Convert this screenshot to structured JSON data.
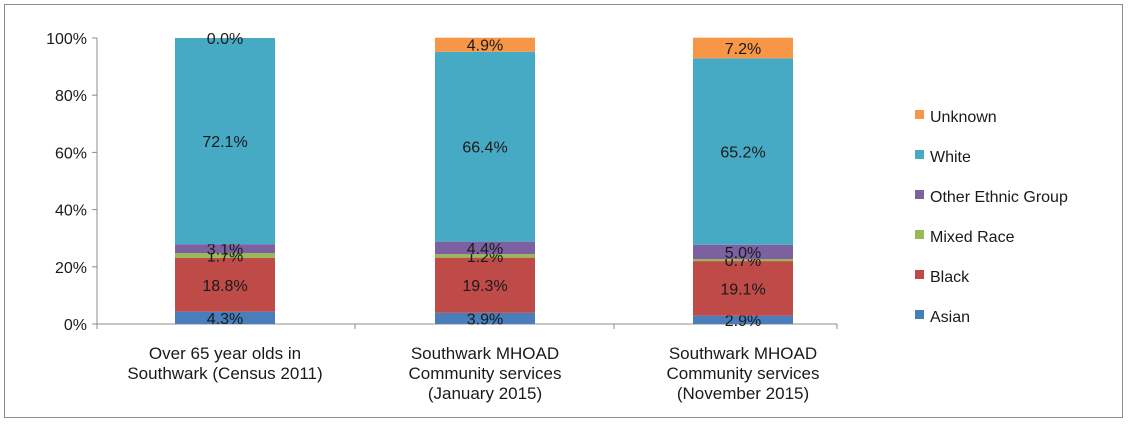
{
  "chart_data": {
    "type": "bar",
    "stacked": true,
    "percent_stacked": true,
    "title": "",
    "xlabel": "",
    "ylabel": "",
    "ylim": [
      0,
      100
    ],
    "y_ticks": [
      "0%",
      "20%",
      "40%",
      "60%",
      "80%",
      "100%"
    ],
    "grid": false,
    "legend_position": "right",
    "categories": [
      [
        "Over 65 year olds in",
        "Southwark (Census 2011)"
      ],
      [
        "Southwark MHOAD",
        "Community services",
        "(January 2015)"
      ],
      [
        "Southwark MHOAD",
        "Community services",
        "(November 2015)"
      ]
    ],
    "series": [
      {
        "name": "Asian",
        "color": "#4a7ebb",
        "values": [
          4.3,
          3.9,
          2.9
        ],
        "labels": [
          "4.3%",
          "3.9%",
          "2.9%"
        ]
      },
      {
        "name": "Black",
        "color": "#be4b48",
        "values": [
          18.8,
          19.3,
          19.1
        ],
        "labels": [
          "18.8%",
          "19.3%",
          "19.1%"
        ]
      },
      {
        "name": "Mixed Race",
        "color": "#98b954",
        "values": [
          1.7,
          1.2,
          0.7
        ],
        "labels": [
          "1.7%",
          "1.2%",
          "0.7%"
        ]
      },
      {
        "name": "Other Ethnic Group",
        "color": "#7d60a0",
        "values": [
          3.1,
          4.4,
          5.0
        ],
        "labels": [
          "3.1%",
          "4.4%",
          "5.0%"
        ]
      },
      {
        "name": "White",
        "color": "#46aac5",
        "values": [
          72.1,
          66.4,
          65.2
        ],
        "labels": [
          "72.1%",
          "66.4%",
          "65.2%"
        ]
      },
      {
        "name": "Unknown",
        "color": "#f79646",
        "values": [
          0.0,
          4.9,
          7.2
        ],
        "labels": [
          "0.0%",
          "4.9%",
          "7.2%"
        ]
      }
    ]
  }
}
